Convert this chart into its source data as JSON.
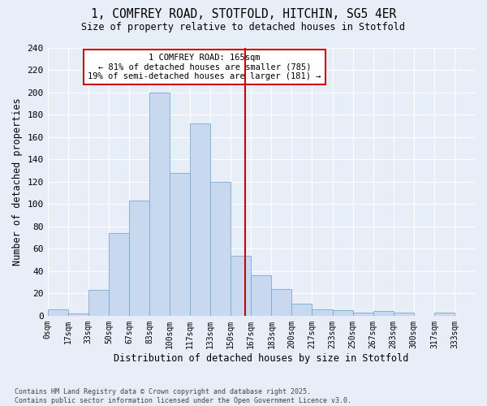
{
  "title_line1": "1, COMFREY ROAD, STOTFOLD, HITCHIN, SG5 4ER",
  "title_line2": "Size of property relative to detached houses in Stotfold",
  "xlabel": "Distribution of detached houses by size in Stotfold",
  "ylabel": "Number of detached properties",
  "bin_labels": [
    "0sqm",
    "17sqm",
    "33sqm",
    "50sqm",
    "67sqm",
    "83sqm",
    "100sqm",
    "117sqm",
    "133sqm",
    "150sqm",
    "167sqm",
    "183sqm",
    "200sqm",
    "217sqm",
    "233sqm",
    "250sqm",
    "267sqm",
    "283sqm",
    "300sqm",
    "317sqm",
    "333sqm"
  ],
  "bar_values": [
    6,
    2,
    23,
    74,
    103,
    200,
    128,
    172,
    120,
    54,
    36,
    24,
    11,
    6,
    5,
    3,
    4,
    3,
    0,
    3
  ],
  "bar_color": "#c8d8ee",
  "bar_edge_color": "#7aaad0",
  "background_color": "#e8eef8",
  "grid_color": "#ffffff",
  "vline_color": "#cc0000",
  "annotation_text": "1 COMFREY ROAD: 165sqm\n← 81% of detached houses are smaller (785)\n19% of semi-detached houses are larger (181) →",
  "annotation_box_color": "#ffffff",
  "annotation_box_edge": "#cc0000",
  "ylim": [
    0,
    240
  ],
  "yticks": [
    0,
    20,
    40,
    60,
    80,
    100,
    120,
    140,
    160,
    180,
    200,
    220,
    240
  ],
  "footnote": "Contains HM Land Registry data © Crown copyright and database right 2025.\nContains public sector information licensed under the Open Government Licence v3.0.",
  "bin_width": 17,
  "n_bars": 20
}
